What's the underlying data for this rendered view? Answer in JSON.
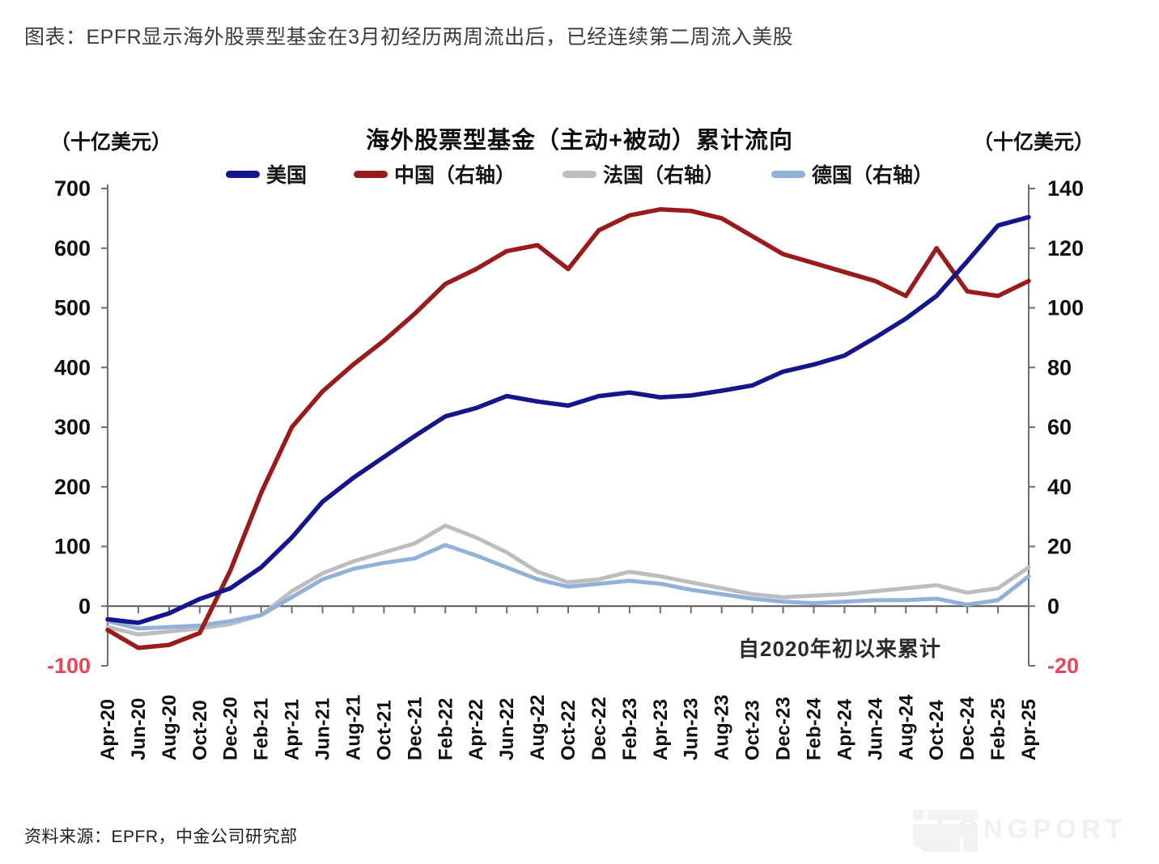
{
  "page": {
    "title": "图表：EPFR显示海外股票型基金在3月初经历两周流出后，已经连续第二周流入美股",
    "source": "资料来源：EPFR，中金公司研究部",
    "brand": "LONGPORT"
  },
  "chart_data": {
    "type": "line",
    "title": "海外股票型基金（主动+被动）累计流向",
    "left_axis_unit": "（十亿美元）",
    "right_axis_unit": "（十亿美元）",
    "annotation": "自2020年初以来累计",
    "xlabel": "",
    "ylabel_left": "十亿美元",
    "ylabel_right": "十亿美元",
    "left_ticks": [
      700,
      600,
      500,
      400,
      300,
      200,
      100,
      0,
      -100
    ],
    "right_ticks": [
      140,
      120,
      100,
      80,
      60,
      40,
      20,
      0,
      -20
    ],
    "left_range": [
      -100,
      700
    ],
    "right_range": [
      -20,
      140
    ],
    "grid": false,
    "legend_position": "top",
    "negative_tick_color": "#e8445a",
    "tick_color": "#111111",
    "axis_color": "#6e6e6e",
    "categories": [
      "Apr-20",
      "Jun-20",
      "Aug-20",
      "Oct-20",
      "Dec-20",
      "Feb-21",
      "Apr-21",
      "Jun-21",
      "Aug-21",
      "Oct-21",
      "Dec-21",
      "Feb-22",
      "Apr-22",
      "Jun-22",
      "Aug-22",
      "Oct-22",
      "Dec-22",
      "Feb-23",
      "Apr-23",
      "Jun-23",
      "Aug-23",
      "Oct-23",
      "Dec-23",
      "Feb-24",
      "Apr-24",
      "Jun-24",
      "Aug-24",
      "Oct-24",
      "Dec-24",
      "Feb-25",
      "Apr-25"
    ],
    "series": [
      {
        "name": "法国（右轴）",
        "axis": "right",
        "color": "#bdbdbd",
        "width": 5,
        "values": [
          -7,
          -9.5,
          -8.5,
          -7.5,
          -6,
          -3,
          5,
          11,
          15,
          18,
          21,
          27,
          23,
          18,
          11.5,
          8,
          9,
          11.5,
          10,
          8,
          6,
          4,
          3,
          3.5,
          4,
          5,
          6,
          7,
          4.5,
          6,
          13
        ]
      },
      {
        "name": "德国（右轴）",
        "axis": "right",
        "color": "#93b1d8",
        "width": 5,
        "values": [
          -5,
          -7.5,
          -7,
          -6.5,
          -5,
          -3,
          3,
          9,
          12.5,
          14.5,
          16,
          20.5,
          17,
          13,
          9,
          6.5,
          7.5,
          8.5,
          7.5,
          5.5,
          4,
          2.5,
          1.5,
          1,
          1.5,
          2,
          2,
          2.5,
          0.5,
          2,
          10
        ]
      },
      {
        "name": "中国（右轴）",
        "axis": "right",
        "color": "#9a1b1c",
        "width": 5.5,
        "values": [
          -8,
          -14,
          -13,
          -9,
          12,
          38,
          60,
          72,
          81,
          89,
          98,
          108,
          113,
          119,
          121,
          113,
          126,
          131,
          133,
          132.5,
          130,
          124,
          118,
          115,
          112,
          109,
          104,
          120,
          105.5,
          104,
          109
        ]
      },
      {
        "name": "美国",
        "axis": "left",
        "color": "#15158c",
        "width": 5.5,
        "values": [
          -22,
          -28,
          -12,
          12,
          30,
          65,
          115,
          175,
          215,
          250,
          285,
          318,
          332,
          352,
          343,
          336,
          352,
          358,
          350,
          353,
          361,
          370,
          393,
          405,
          420,
          450,
          482,
          520,
          578,
          638,
          652
        ]
      }
    ],
    "legend_order": [
      "美国",
      "中国（右轴）",
      "法国（右轴）",
      "德国（右轴）"
    ]
  }
}
